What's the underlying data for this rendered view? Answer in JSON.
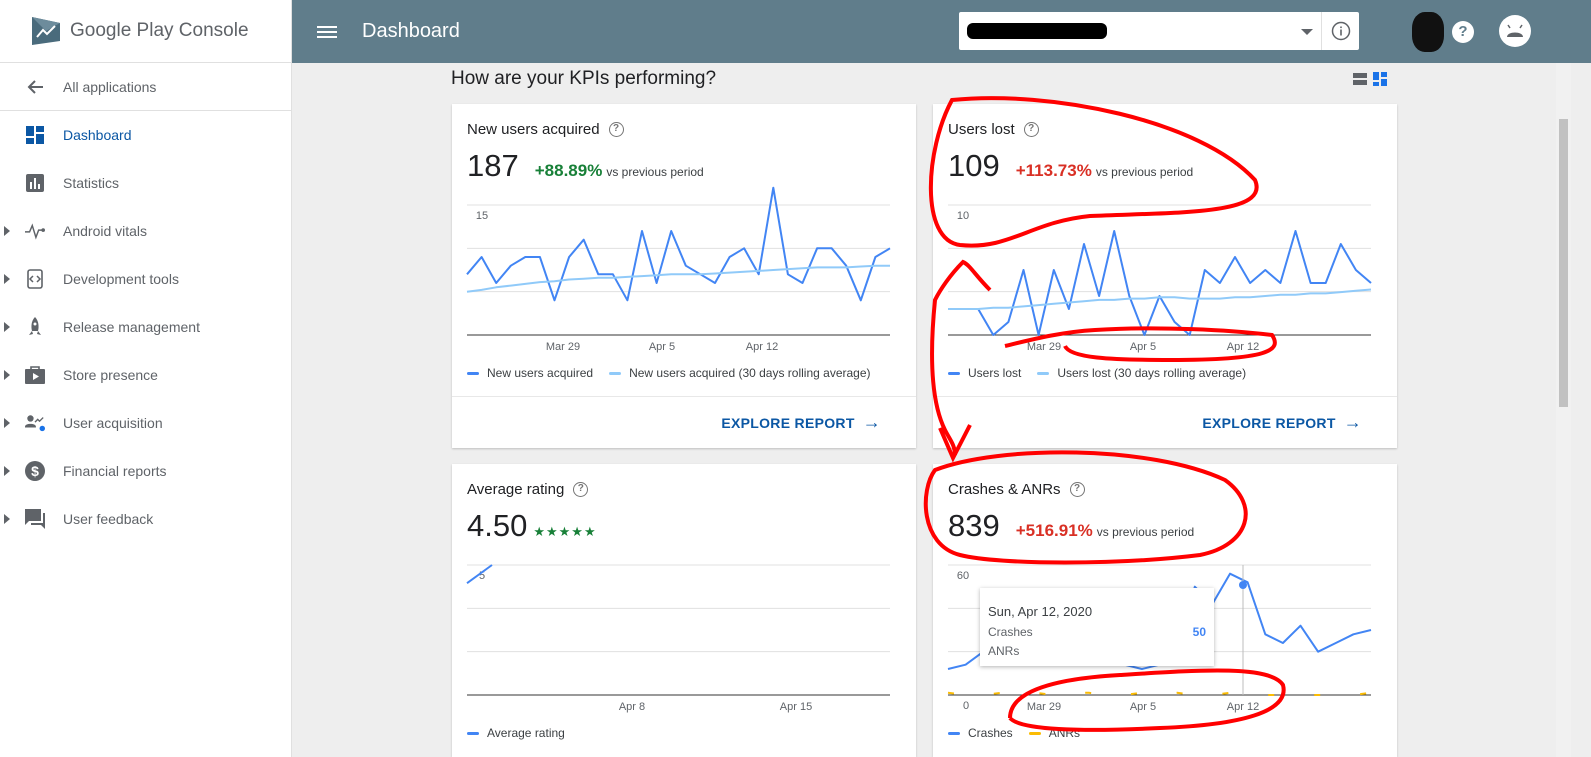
{
  "app": {
    "name_part1": "Google Play",
    "name_part2": "Console"
  },
  "topbar": {
    "title": "Dashboard"
  },
  "sidebar": {
    "back_label": "All applications",
    "items": [
      {
        "label": "Dashboard",
        "icon": "dashboard-icon",
        "active": true
      },
      {
        "label": "Statistics",
        "icon": "bar-chart-icon"
      },
      {
        "label": "Android vitals",
        "icon": "pulse-icon"
      },
      {
        "label": "Development tools",
        "icon": "code-icon"
      },
      {
        "label": "Release management",
        "icon": "rocket-icon"
      },
      {
        "label": "Store presence",
        "icon": "store-icon"
      },
      {
        "label": "User acquisition",
        "icon": "user-acquisition-icon"
      },
      {
        "label": "Financial reports",
        "icon": "dollar-icon"
      },
      {
        "label": "User feedback",
        "icon": "feedback-icon"
      }
    ]
  },
  "main": {
    "heading": "How are your KPIs performing?",
    "cards": {
      "new_users": {
        "title": "New users acquired",
        "value": "187",
        "change": "+88.89%",
        "vs": "vs previous period",
        "y_tick": "15",
        "x_ticks": [
          "Mar 29",
          "Apr 5",
          "Apr 12"
        ],
        "legend": [
          "New users acquired",
          "New users acquired (30 days rolling average)"
        ],
        "explore": "EXPLORE REPORT"
      },
      "users_lost": {
        "title": "Users lost",
        "value": "109",
        "change": "+113.73%",
        "vs": "vs previous period",
        "y_tick": "10",
        "x_ticks": [
          "Mar 29",
          "Apr 5",
          "Apr 12"
        ],
        "legend": [
          "Users lost",
          "Users lost (30 days rolling average)"
        ],
        "explore": "EXPLORE REPORT"
      },
      "avg_rating": {
        "title": "Average rating",
        "value": "4.50",
        "stars": "★★★★★",
        "y_tick": "5",
        "x_ticks": [
          "Apr 8",
          "Apr 15"
        ],
        "legend": [
          "Average rating"
        ]
      },
      "crashes": {
        "title": "Crashes & ANRs",
        "value": "839",
        "change": "+516.91%",
        "vs": "vs previous period",
        "y_tick": "60",
        "y_tick0": "0",
        "x_ticks": [
          "Mar 29",
          "Apr 5",
          "Apr 12"
        ],
        "legend": [
          "Crashes",
          "ANRs"
        ],
        "tooltip": {
          "date": "Sun, Apr 12, 2020",
          "crashes_label": "Crashes",
          "crashes_value": "50",
          "anrs_label": "ANRs"
        }
      }
    }
  },
  "colors": {
    "topbar": "#607d8b",
    "series": "#4285f4",
    "rolling": "#90caf9",
    "anr": "#fbbc04",
    "up_good": "#188038",
    "up_bad": "#d93025",
    "annotation": "#ff0000"
  },
  "chart_data": [
    {
      "type": "line",
      "title": "New users acquired",
      "x_ticks": [
        "Mar 29",
        "Apr 5",
        "Apr 12"
      ],
      "ylim": [
        0,
        15
      ],
      "series": [
        {
          "name": "New users acquired",
          "values": [
            7,
            9,
            6,
            8,
            9,
            9,
            4,
            9,
            11,
            7,
            7,
            4,
            12,
            6,
            12,
            8,
            7,
            6,
            9,
            10,
            7,
            17,
            7,
            6,
            10,
            10,
            8,
            4,
            9,
            10
          ]
        },
        {
          "name": "New users acquired (30 days rolling average)",
          "values": [
            5,
            5.2,
            5.5,
            5.7,
            5.9,
            6.1,
            6.2,
            6.4,
            6.5,
            6.6,
            6.6,
            6.7,
            6.8,
            6.9,
            7,
            7,
            7,
            7.1,
            7.2,
            7.3,
            7.4,
            7.5,
            7.6,
            7.7,
            7.8,
            7.8,
            7.8,
            7.9,
            8,
            8
          ]
        }
      ]
    },
    {
      "type": "line",
      "title": "Users lost",
      "x_ticks": [
        "Mar 29",
        "Apr 5",
        "Apr 12"
      ],
      "ylim": [
        0,
        10
      ],
      "series": [
        {
          "name": "Users lost",
          "values": [
            2,
            2,
            2,
            0,
            1,
            5,
            0,
            5,
            2,
            7,
            3,
            8,
            3,
            0,
            3,
            1,
            0,
            5,
            4,
            6,
            4,
            5,
            4,
            8,
            4,
            4,
            7,
            5,
            4
          ]
        },
        {
          "name": "Users lost (30 days rolling average)",
          "values": [
            2,
            2,
            2,
            2.1,
            2.1,
            2.2,
            2.3,
            2.4,
            2.5,
            2.6,
            2.7,
            2.7,
            2.8,
            2.8,
            2.9,
            2.9,
            2.8,
            2.8,
            2.8,
            2.9,
            2.9,
            3,
            3.1,
            3.1,
            3.2,
            3.2,
            3.3,
            3.4,
            3.5
          ]
        }
      ]
    },
    {
      "type": "line",
      "title": "Average rating",
      "x_ticks": [
        "Apr 8",
        "Apr 15"
      ],
      "ylim": [
        0,
        5
      ],
      "series": [
        {
          "name": "Average rating",
          "values": [
            4.3,
            5
          ]
        }
      ]
    },
    {
      "type": "line",
      "title": "Crashes & ANRs",
      "x_ticks": [
        "Mar 29",
        "Apr 5",
        "Apr 12"
      ],
      "ylim": [
        0,
        60
      ],
      "series": [
        {
          "name": "Crashes",
          "values": [
            12,
            14,
            20,
            25,
            28,
            26,
            24,
            20,
            18,
            16,
            14,
            12,
            14,
            18,
            50,
            42,
            56,
            52,
            28,
            24,
            32,
            20,
            24,
            28,
            30
          ]
        },
        {
          "name": "ANRs",
          "values": [
            1,
            0,
            0,
            1,
            0,
            1,
            0,
            1,
            1,
            0,
            0,
            1,
            0,
            1,
            0,
            0,
            1,
            1,
            0,
            0,
            0,
            0,
            0,
            0,
            1
          ]
        }
      ]
    }
  ]
}
